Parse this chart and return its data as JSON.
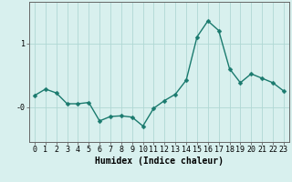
{
  "x": [
    0,
    1,
    2,
    3,
    4,
    5,
    6,
    7,
    8,
    9,
    10,
    11,
    12,
    13,
    14,
    15,
    16,
    17,
    18,
    19,
    20,
    21,
    22,
    23
  ],
  "y": [
    0.18,
    0.28,
    0.22,
    0.05,
    0.05,
    0.07,
    -0.22,
    -0.15,
    -0.14,
    -0.16,
    -0.3,
    -0.02,
    0.1,
    0.2,
    0.42,
    1.1,
    1.35,
    1.2,
    0.6,
    0.38,
    0.52,
    0.45,
    0.38,
    0.25
  ],
  "line_color": "#1a7a6e",
  "marker_color": "#1a7a6e",
  "bg_color": "#d8f0ee",
  "grid_color": "#b0d8d4",
  "xlabel": "Humidex (Indice chaleur)",
  "ylim": [
    -0.55,
    1.65
  ],
  "xlim": [
    -0.5,
    23.5
  ],
  "yticks": [
    0.0,
    1.0
  ],
  "ytick_labels": [
    "-0",
    "1"
  ],
  "xtick_labels": [
    "0",
    "1",
    "2",
    "3",
    "4",
    "5",
    "6",
    "7",
    "8",
    "9",
    "10",
    "11",
    "12",
    "13",
    "14",
    "15",
    "16",
    "17",
    "18",
    "19",
    "20",
    "21",
    "22",
    "23"
  ],
  "font_family": "monospace",
  "axis_fontsize": 7,
  "tick_fontsize": 6,
  "linewidth": 1.0,
  "marker_size": 2.5
}
